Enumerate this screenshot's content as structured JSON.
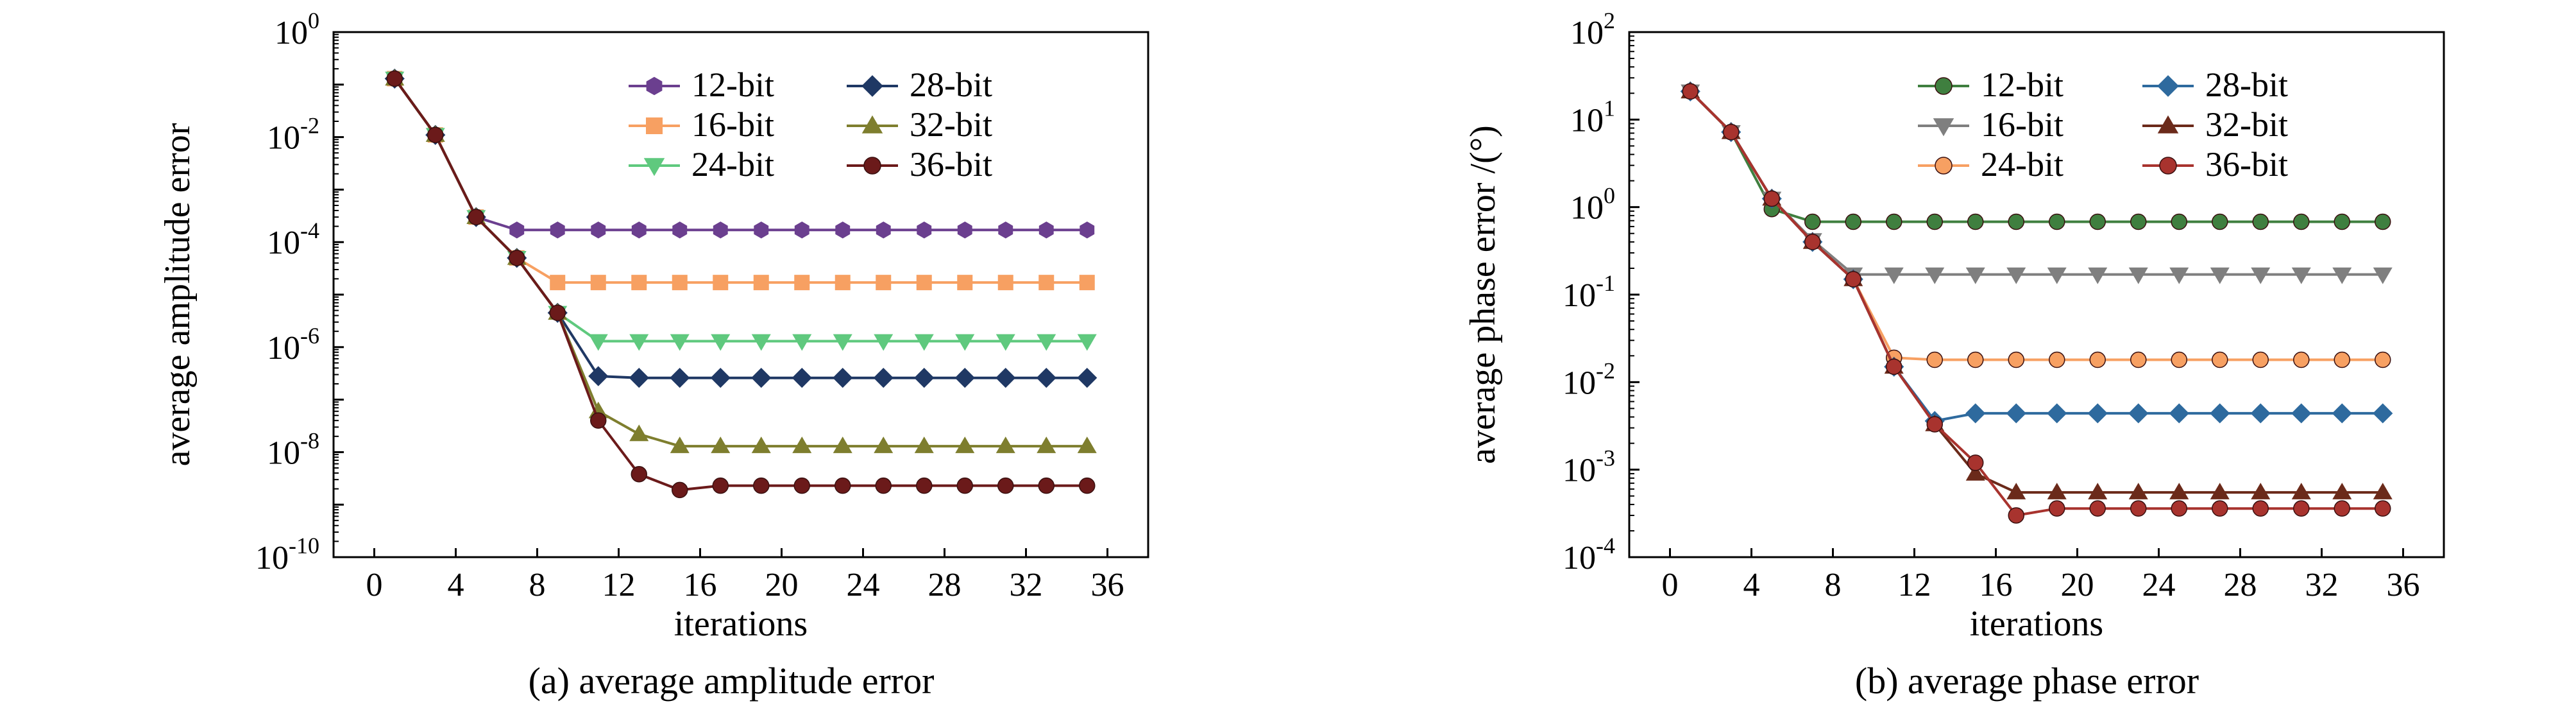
{
  "chart_data": [
    {
      "type": "line",
      "caption": "(a) average amplitude error",
      "xlabel": "iterations",
      "ylabel": "average amplitude error",
      "y_scale": "log",
      "xlim": [
        -2,
        38
      ],
      "ylim_exponents": [
        -10,
        0
      ],
      "x_ticks": [
        "0",
        "4",
        "8",
        "12",
        "16",
        "20",
        "24",
        "28",
        "32",
        "36"
      ],
      "y_tick_exponents": [
        "0",
        "-2",
        "-4",
        "-6",
        "-8",
        "-10"
      ],
      "y_tick_base": "10",
      "legend": {
        "placement": "top-right",
        "columns": 2
      },
      "x": [
        1,
        3,
        5,
        7,
        9,
        11,
        13,
        15,
        17,
        19,
        21,
        23,
        25,
        27,
        29,
        31,
        33,
        35
      ],
      "series": [
        {
          "name": "12-bit",
          "color": "#6B3F8F",
          "marker": "hexagon",
          "values": [
            0.13,
            0.011,
            0.0003,
            0.00017,
            0.00017,
            0.00017,
            0.00017,
            0.00017,
            0.00017,
            0.00017,
            0.00017,
            0.00017,
            0.00017,
            0.00017,
            0.00017,
            0.00017,
            0.00017,
            0.00017
          ]
        },
        {
          "name": "16-bit",
          "color": "#F7A062",
          "marker": "square",
          "values": [
            0.13,
            0.011,
            0.0003,
            5e-05,
            1.7e-05,
            1.7e-05,
            1.7e-05,
            1.7e-05,
            1.7e-05,
            1.7e-05,
            1.7e-05,
            1.7e-05,
            1.7e-05,
            1.7e-05,
            1.7e-05,
            1.7e-05,
            1.7e-05,
            1.7e-05
          ]
        },
        {
          "name": "24-bit",
          "color": "#5FC97E",
          "marker": "triangle-down",
          "values": [
            0.13,
            0.011,
            0.0003,
            5e-05,
            4.5e-06,
            1.3e-06,
            1.3e-06,
            1.3e-06,
            1.3e-06,
            1.3e-06,
            1.3e-06,
            1.3e-06,
            1.3e-06,
            1.3e-06,
            1.3e-06,
            1.3e-06,
            1.3e-06,
            1.3e-06
          ]
        },
        {
          "name": "28-bit",
          "color": "#1F3864",
          "marker": "diamond",
          "values": [
            0.13,
            0.011,
            0.0003,
            5e-05,
            4.5e-06,
            2.8e-07,
            2.6e-07,
            2.6e-07,
            2.6e-07,
            2.6e-07,
            2.6e-07,
            2.6e-07,
            2.6e-07,
            2.6e-07,
            2.6e-07,
            2.6e-07,
            2.6e-07,
            2.6e-07
          ]
        },
        {
          "name": "32-bit",
          "color": "#7E7E2E",
          "marker": "triangle-up",
          "values": [
            0.13,
            0.011,
            0.0003,
            5e-05,
            4.5e-06,
            6e-08,
            2.2e-08,
            1.3e-08,
            1.3e-08,
            1.3e-08,
            1.3e-08,
            1.3e-08,
            1.3e-08,
            1.3e-08,
            1.3e-08,
            1.3e-08,
            1.3e-08,
            1.3e-08
          ]
        },
        {
          "name": "36-bit",
          "color": "#6B1A1A",
          "marker": "circle",
          "values": [
            0.13,
            0.011,
            0.0003,
            5e-05,
            4.5e-06,
            4e-08,
            3.8e-09,
            1.9e-09,
            2.3e-09,
            2.3e-09,
            2.3e-09,
            2.3e-09,
            2.3e-09,
            2.3e-09,
            2.3e-09,
            2.3e-09,
            2.3e-09,
            2.3e-09
          ]
        }
      ]
    },
    {
      "type": "line",
      "caption": "(b) average phase error",
      "xlabel": "iterations",
      "ylabel": "average phase error /(°)",
      "y_scale": "log",
      "xlim": [
        -2,
        38
      ],
      "ylim_exponents": [
        -4,
        2
      ],
      "x_ticks": [
        "0",
        "4",
        "8",
        "12",
        "16",
        "20",
        "24",
        "28",
        "32",
        "36"
      ],
      "y_tick_exponents": [
        "2",
        "1",
        "0",
        "-1",
        "-2",
        "-3",
        "-4"
      ],
      "y_tick_base": "10",
      "legend": {
        "placement": "top-right",
        "columns": 2
      },
      "x": [
        1,
        3,
        5,
        7,
        9,
        11,
        13,
        15,
        17,
        19,
        21,
        23,
        25,
        27,
        29,
        31,
        33,
        35
      ],
      "series": [
        {
          "name": "12-bit",
          "color": "#3F7F3F",
          "marker": "circle",
          "values": [
            21,
            7.2,
            0.95,
            0.68,
            0.68,
            0.68,
            0.68,
            0.68,
            0.68,
            0.68,
            0.68,
            0.68,
            0.68,
            0.68,
            0.68,
            0.68,
            0.68,
            0.68
          ]
        },
        {
          "name": "16-bit",
          "color": "#7F7F7F",
          "marker": "triangle-down",
          "values": [
            21,
            7.2,
            1.25,
            0.42,
            0.17,
            0.17,
            0.17,
            0.17,
            0.17,
            0.17,
            0.17,
            0.17,
            0.17,
            0.17,
            0.17,
            0.17,
            0.17,
            0.17
          ]
        },
        {
          "name": "24-bit",
          "color": "#F7A062",
          "marker": "circle",
          "values": [
            21,
            7.2,
            1.25,
            0.4,
            0.15,
            0.019,
            0.018,
            0.018,
            0.018,
            0.018,
            0.018,
            0.018,
            0.018,
            0.018,
            0.018,
            0.018,
            0.018,
            0.018
          ]
        },
        {
          "name": "28-bit",
          "color": "#2E6A9E",
          "marker": "diamond",
          "values": [
            21,
            7.2,
            1.25,
            0.4,
            0.15,
            0.015,
            0.0036,
            0.0044,
            0.0044,
            0.0044,
            0.0044,
            0.0044,
            0.0044,
            0.0044,
            0.0044,
            0.0044,
            0.0044,
            0.0044
          ]
        },
        {
          "name": "32-bit",
          "color": "#6B2A1A",
          "marker": "triangle-up",
          "values": [
            21,
            7.2,
            1.25,
            0.4,
            0.15,
            0.015,
            0.0033,
            0.0009,
            0.00055,
            0.00055,
            0.00055,
            0.00055,
            0.00055,
            0.00055,
            0.00055,
            0.00055,
            0.00055,
            0.00055
          ]
        },
        {
          "name": "36-bit",
          "color": "#A8332E",
          "marker": "circle",
          "values": [
            21,
            7.2,
            1.25,
            0.4,
            0.15,
            0.015,
            0.0033,
            0.0012,
            0.0003,
            0.00036,
            0.00036,
            0.00036,
            0.00036,
            0.00036,
            0.00036,
            0.00036,
            0.00036,
            0.00036
          ]
        }
      ]
    }
  ]
}
